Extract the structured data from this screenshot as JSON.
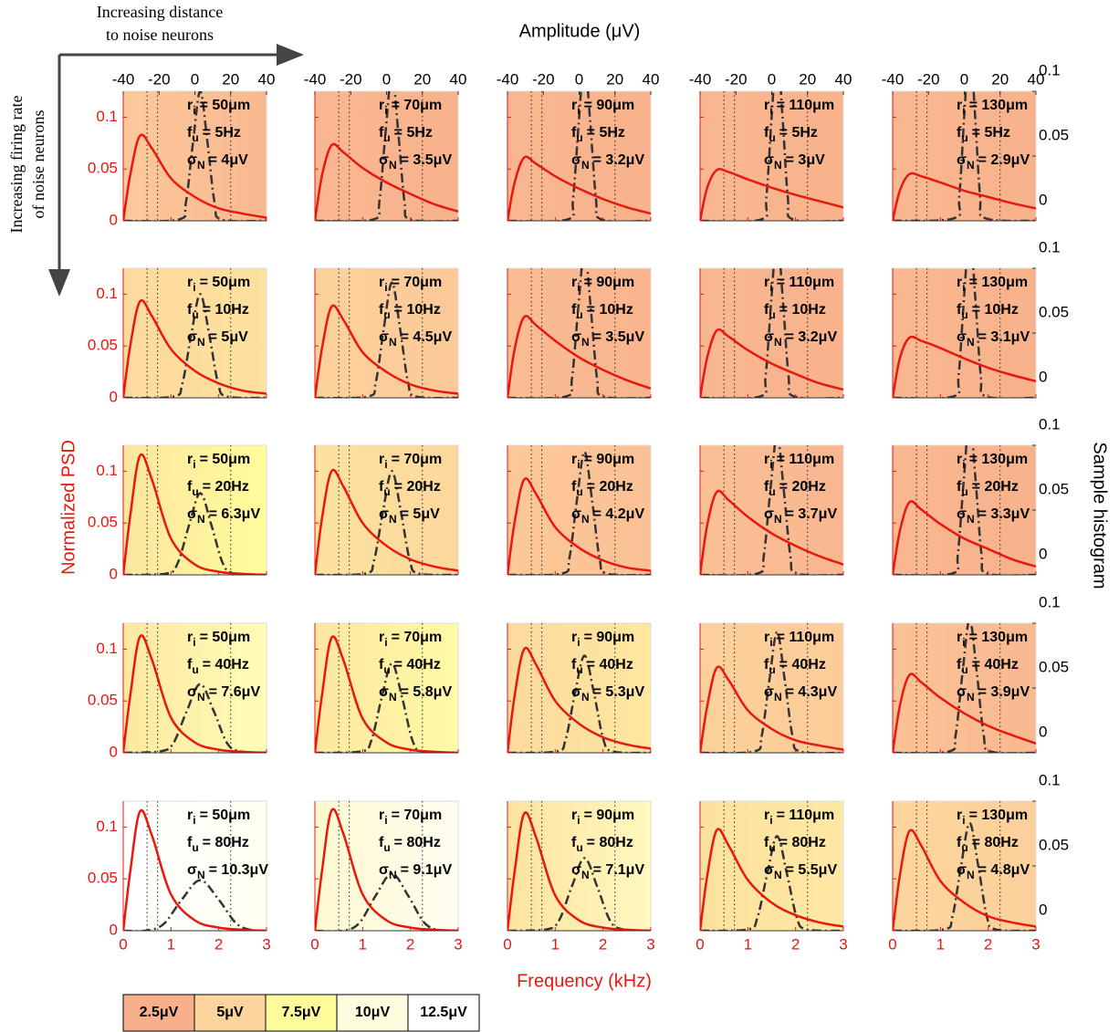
{
  "annotations": {
    "distance_arrow": [
      "Increasing distance",
      "to noise neurons"
    ],
    "rate_arrow": [
      "Increasing firing rate",
      "of noise neurons"
    ]
  },
  "chart_data": {
    "type": "small-multiples",
    "xlabel": "Frequency (kHz)",
    "ylabel": "Normalized PSD",
    "x2label": "Amplitude (μV)",
    "y2label": "Sample histogram",
    "xlim": [
      0,
      3
    ],
    "xticks": [
      0,
      1,
      2,
      3
    ],
    "ylim": [
      0,
      0.125
    ],
    "yticks": [
      0,
      0.05,
      0.1
    ],
    "x2lim": [
      -40,
      40
    ],
    "x2ticks": [
      -40,
      -20,
      0,
      20,
      40
    ],
    "y2lim": [
      0,
      0.1
    ],
    "y2ticks": [
      0,
      0.05,
      0.1
    ],
    "psd_color": "#e8170f",
    "hist_color": "#333333",
    "guides": [
      0.5,
      0.72,
      2.25
    ],
    "param_symbols": [
      {
        "symbol": "r",
        "sub": "i"
      },
      {
        "symbol": "f",
        "sub": "u"
      },
      {
        "symbol": "σ",
        "sub": "N"
      }
    ],
    "psd_x": [
      0,
      0.15,
      0.35,
      0.6,
      1,
      1.5,
      2,
      2.5,
      3
    ],
    "panels": [
      {
        "params": [
          "= 50μm",
          "= 5Hz",
          "= 4μV"
        ],
        "background": [
          "#fcc99a",
          "#f9b890"
        ],
        "psd": [
          0,
          0.045,
          0.082,
          0.07,
          0.041,
          0.023,
          0.012,
          0.007,
          0.003
        ],
        "hist_x": [
          -40,
          -9,
          -5,
          -1,
          3,
          7,
          11,
          15,
          40
        ],
        "hist": [
          0,
          0.001,
          0.014,
          0.061,
          0.1,
          0.061,
          0.014,
          0.001,
          0
        ]
      },
      {
        "params": [
          "= 70μm",
          "= 5Hz",
          "= 3.5μV"
        ],
        "background": [
          "#f9b790",
          "#f8b28c"
        ],
        "psd": [
          0,
          0.044,
          0.073,
          0.066,
          0.051,
          0.037,
          0.026,
          0.016,
          0.009
        ],
        "hist_x": [
          -40,
          -7.5,
          -4,
          -0.5,
          3,
          6.5,
          10,
          13.5,
          40
        ],
        "hist": [
          0,
          0.001,
          0.015,
          0.069,
          0.114,
          0.069,
          0.015,
          0.001,
          0
        ]
      },
      {
        "params": [
          "= 90μm",
          "= 5Hz",
          "= 3.2μV"
        ],
        "background": [
          "#f9b790",
          "#f8b28c"
        ],
        "psd": [
          0,
          0.037,
          0.061,
          0.055,
          0.043,
          0.031,
          0.021,
          0.013,
          0.007
        ],
        "hist_x": [
          -40,
          -6.6,
          -3.4,
          -0.2,
          3,
          6.2,
          9.4,
          12.6,
          40
        ],
        "hist": [
          0,
          0.001,
          0.017,
          0.076,
          0.125,
          0.076,
          0.017,
          0.001,
          0
        ]
      },
      {
        "params": [
          "= 110μm",
          "= 5Hz",
          "= 3μV"
        ],
        "background": [
          "#f9b790",
          "#f8b28c"
        ],
        "psd": [
          0,
          0.032,
          0.049,
          0.047,
          0.04,
          0.032,
          0.025,
          0.019,
          0.013
        ],
        "hist_x": [
          -40,
          -6,
          -3,
          0,
          3,
          6,
          9,
          12,
          40
        ],
        "hist": [
          0,
          0.001,
          0.018,
          0.081,
          0.133,
          0.081,
          0.018,
          0.001,
          0
        ]
      },
      {
        "params": [
          "= 130μm",
          "= 5Hz",
          "= 2.9μV"
        ],
        "background": [
          "#f9b790",
          "#f8b28c"
        ],
        "psd": [
          0,
          0.029,
          0.045,
          0.043,
          0.037,
          0.029,
          0.023,
          0.017,
          0.012
        ],
        "hist_x": [
          -40,
          -5.7,
          -2.8,
          0.1,
          3,
          5.9,
          8.8,
          11.7,
          40
        ],
        "hist": [
          0,
          0.002,
          0.019,
          0.084,
          0.138,
          0.084,
          0.019,
          0.002,
          0
        ]
      },
      {
        "params": [
          "= 50μm",
          "= 10Hz",
          "= 5μV"
        ],
        "background": [
          "#fdd99d",
          "#fde19f"
        ],
        "psd": [
          0,
          0.051,
          0.093,
          0.079,
          0.047,
          0.026,
          0.014,
          0.007,
          0.004
        ],
        "hist_x": [
          -40,
          -12,
          -7,
          -2,
          3,
          8,
          13,
          18,
          40
        ],
        "hist": [
          0,
          0.001,
          0.011,
          0.049,
          0.08,
          0.049,
          0.011,
          0.001,
          0
        ]
      },
      {
        "params": [
          "= 70μm",
          "= 10Hz",
          "= 4.5μV"
        ],
        "background": [
          "#fcd29c",
          "#fbc898"
        ],
        "psd": [
          0,
          0.048,
          0.088,
          0.075,
          0.044,
          0.025,
          0.013,
          0.007,
          0.004
        ],
        "hist_x": [
          -40,
          -10.5,
          -6,
          -1.5,
          3,
          7.5,
          12,
          16.5,
          40
        ],
        "hist": [
          0,
          0.001,
          0.012,
          0.054,
          0.089,
          0.054,
          0.012,
          0.001,
          0
        ]
      },
      {
        "params": [
          "= 90μm",
          "= 10Hz",
          "= 3.5μV"
        ],
        "background": [
          "#f9bd93",
          "#f9b48e"
        ],
        "psd": [
          0,
          0.047,
          0.078,
          0.07,
          0.055,
          0.039,
          0.027,
          0.017,
          0.009
        ],
        "hist_x": [
          -40,
          -7.5,
          -4,
          -0.5,
          3,
          6.5,
          10,
          13.5,
          40
        ],
        "hist": [
          0,
          0.001,
          0.015,
          0.069,
          0.114,
          0.069,
          0.015,
          0.001,
          0
        ]
      },
      {
        "params": [
          "= 110μm",
          "= 10Hz",
          "= 3.2μV"
        ],
        "background": [
          "#f9b790",
          "#f8b28c"
        ],
        "psd": [
          0,
          0.039,
          0.065,
          0.059,
          0.046,
          0.033,
          0.023,
          0.014,
          0.008
        ],
        "hist_x": [
          -40,
          -6.6,
          -3.4,
          -0.2,
          3,
          6.2,
          9.4,
          12.6,
          40
        ],
        "hist": [
          0,
          0.001,
          0.017,
          0.076,
          0.125,
          0.076,
          0.017,
          0.001,
          0
        ]
      },
      {
        "params": [
          "= 130μm",
          "= 10Hz",
          "= 3.1μV"
        ],
        "background": [
          "#f9b790",
          "#f8b28c"
        ],
        "psd": [
          0,
          0.038,
          0.058,
          0.055,
          0.048,
          0.038,
          0.029,
          0.022,
          0.016
        ],
        "hist_x": [
          -40,
          -6.3,
          -3.2,
          -0.1,
          3,
          6.1,
          9.2,
          12.3,
          40
        ],
        "hist": [
          0,
          0.001,
          0.017,
          0.078,
          0.129,
          0.078,
          0.017,
          0.001,
          0
        ]
      },
      {
        "params": [
          "= 50μm",
          "= 20Hz",
          "= 6.3μV"
        ],
        "background": [
          "#fde69f",
          "#fffc9c"
        ],
        "psd": [
          0,
          0.058,
          0.115,
          0.092,
          0.035,
          0.01,
          0.003,
          0.001,
          0
        ],
        "hist_x": [
          -40,
          -15.9,
          -9.6,
          -3.3,
          3,
          9.3,
          15.6,
          21.9,
          40
        ],
        "hist": [
          0,
          0.001,
          0.009,
          0.038,
          0.063,
          0.038,
          0.009,
          0.001,
          0
        ]
      },
      {
        "params": [
          "= 70μm",
          "= 20Hz",
          "= 5μV"
        ],
        "background": [
          "#fde39f",
          "#fcd79c"
        ],
        "psd": [
          0,
          0.055,
          0.1,
          0.085,
          0.05,
          0.028,
          0.015,
          0.008,
          0.004
        ],
        "hist_x": [
          -40,
          -12,
          -7,
          -2,
          3,
          8,
          13,
          18,
          40
        ],
        "hist": [
          0,
          0.001,
          0.011,
          0.049,
          0.08,
          0.049,
          0.011,
          0.001,
          0
        ]
      },
      {
        "params": [
          "= 90μm",
          "= 20Hz",
          "= 4.2μV"
        ],
        "background": [
          "#fcc897",
          "#fbc195"
        ],
        "psd": [
          0,
          0.051,
          0.092,
          0.078,
          0.046,
          0.026,
          0.014,
          0.007,
          0.004
        ],
        "hist_x": [
          -40,
          -9.6,
          -5.4,
          -1.2,
          3,
          7.2,
          11.4,
          15.6,
          40
        ],
        "hist": [
          0,
          0.001,
          0.013,
          0.058,
          0.095,
          0.058,
          0.013,
          0.001,
          0
        ]
      },
      {
        "params": [
          "= 110μm",
          "= 20Hz",
          "= 3.7μV"
        ],
        "background": [
          "#fac094",
          "#f9b690"
        ],
        "psd": [
          0,
          0.048,
          0.08,
          0.072,
          0.056,
          0.04,
          0.028,
          0.018,
          0.01
        ],
        "hist_x": [
          -40,
          -8.1,
          -4.4,
          -0.7,
          3,
          6.7,
          10.4,
          14.1,
          40
        ],
        "hist": [
          0,
          0.001,
          0.015,
          0.066,
          0.108,
          0.066,
          0.015,
          0.001,
          0
        ]
      },
      {
        "params": [
          "= 130μm",
          "= 20Hz",
          "= 3.3μV"
        ],
        "background": [
          "#f9b790",
          "#f8b28c"
        ],
        "psd": [
          0,
          0.042,
          0.07,
          0.063,
          0.049,
          0.035,
          0.025,
          0.015,
          0.008
        ],
        "hist_x": [
          -40,
          -6.9,
          -3.6,
          -0.3,
          3,
          6.3,
          9.6,
          12.9,
          40
        ],
        "hist": [
          0,
          0.001,
          0.016,
          0.073,
          0.121,
          0.073,
          0.016,
          0.001,
          0
        ]
      },
      {
        "params": [
          "= 50μm",
          "= 40Hz",
          "= 7.6μV"
        ],
        "background": [
          "#fde8a0",
          "#fffdb8"
        ],
        "psd": [
          0,
          0.056,
          0.112,
          0.09,
          0.034,
          0.01,
          0.003,
          0.001,
          0
        ],
        "hist_x": [
          -40,
          -19.8,
          -12.2,
          -4.6,
          3,
          10.6,
          18.2,
          25.8,
          40
        ],
        "hist": [
          0,
          0.001,
          0.007,
          0.032,
          0.053,
          0.032,
          0.007,
          0.001,
          0
        ]
      },
      {
        "params": [
          "= 70μm",
          "= 40Hz",
          "= 5.8μV"
        ],
        "background": [
          "#fde7a0",
          "#fefaa6"
        ],
        "psd": [
          0,
          0.056,
          0.111,
          0.089,
          0.033,
          0.01,
          0.003,
          0.001,
          0
        ],
        "hist_x": [
          -40,
          -14.4,
          -8.6,
          -2.8,
          3,
          8.8,
          14.6,
          20.4,
          40
        ],
        "hist": [
          0,
          0.001,
          0.009,
          0.042,
          0.069,
          0.042,
          0.009,
          0.001,
          0
        ]
      },
      {
        "params": [
          "= 90μm",
          "= 40Hz",
          "= 5.3μV"
        ],
        "background": [
          "#fdd99d",
          "#fde8a0"
        ],
        "psd": [
          0,
          0.055,
          0.1,
          0.085,
          0.05,
          0.028,
          0.015,
          0.008,
          0.004
        ],
        "hist_x": [
          -40,
          -12.9,
          -7.6,
          -2.3,
          3,
          8.3,
          13.6,
          18.9,
          40
        ],
        "hist": [
          0,
          0.001,
          0.01,
          0.046,
          0.075,
          0.046,
          0.01,
          0.001,
          0
        ]
      },
      {
        "params": [
          "= 110μm",
          "= 40Hz",
          "= 4.3μV"
        ],
        "background": [
          "#fcd09b",
          "#fccb99"
        ],
        "psd": [
          0,
          0.045,
          0.082,
          0.07,
          0.041,
          0.023,
          0.012,
          0.007,
          0.003
        ],
        "hist_x": [
          -40,
          -9.9,
          -5.6,
          -1.3,
          3,
          7.3,
          11.6,
          15.9,
          40
        ],
        "hist": [
          0,
          0.001,
          0.013,
          0.056,
          0.093,
          0.056,
          0.013,
          0.001,
          0
        ]
      },
      {
        "params": [
          "= 130μm",
          "= 40Hz",
          "= 3.9μV"
        ],
        "background": [
          "#fac295",
          "#f9b991"
        ],
        "psd": [
          0,
          0.045,
          0.075,
          0.068,
          0.053,
          0.038,
          0.026,
          0.017,
          0.009
        ],
        "hist_x": [
          -40,
          -8.7,
          -4.8,
          -0.9,
          3,
          6.9,
          10.8,
          14.7,
          40
        ],
        "hist": [
          0,
          0.001,
          0.014,
          0.063,
          0.103,
          0.063,
          0.014,
          0.001,
          0
        ]
      },
      {
        "params": [
          "= 50μm",
          "= 80Hz",
          "= 10.3μV"
        ],
        "background": [
          "#ffffff",
          "#fffef0"
        ],
        "psd": [
          0,
          0.058,
          0.115,
          0.092,
          0.035,
          0.01,
          0.003,
          0.001,
          0
        ],
        "hist_x": [
          -40,
          -27.9,
          -17.6,
          -7.3,
          3,
          13.3,
          23.6,
          33.9,
          40
        ],
        "hist": [
          0,
          0,
          0.005,
          0.024,
          0.039,
          0.024,
          0.005,
          0,
          0
        ]
      },
      {
        "params": [
          "= 70μm",
          "= 80Hz",
          "= 9.1μV"
        ],
        "background": [
          "#fff9d0",
          "#fffdf0"
        ],
        "psd": [
          0,
          0.058,
          0.116,
          0.093,
          0.035,
          0.01,
          0.003,
          0.001,
          0
        ],
        "hist_x": [
          -40,
          -24.3,
          -15.2,
          -6.1,
          3,
          12.1,
          21.2,
          30.3,
          40
        ],
        "hist": [
          0,
          0,
          0.006,
          0.027,
          0.044,
          0.027,
          0.006,
          0,
          0
        ]
      },
      {
        "params": [
          "= 90μm",
          "= 80Hz",
          "= 7.1μV"
        ],
        "background": [
          "#fde39f",
          "#fff8c0"
        ],
        "psd": [
          0,
          0.057,
          0.113,
          0.09,
          0.034,
          0.01,
          0.003,
          0.001,
          0
        ],
        "hist_x": [
          -40,
          -18.3,
          -11.2,
          -4.1,
          3,
          10.1,
          17.2,
          24.3,
          40
        ],
        "hist": [
          0,
          0.001,
          0.008,
          0.034,
          0.056,
          0.034,
          0.008,
          0.001,
          0
        ]
      },
      {
        "params": [
          "= 110μm",
          "= 80Hz",
          "= 5.5μV"
        ],
        "background": [
          "#fde19f",
          "#fde8a3"
        ],
        "psd": [
          0,
          0.053,
          0.097,
          0.082,
          0.049,
          0.027,
          0.015,
          0.008,
          0.004
        ],
        "hist_x": [
          -40,
          -13.5,
          -8,
          -2.5,
          3,
          8.5,
          14,
          19.5,
          40
        ],
        "hist": [
          0,
          0.001,
          0.01,
          0.044,
          0.073,
          0.044,
          0.01,
          0.001,
          0
        ]
      },
      {
        "params": [
          "= 130μm",
          "= 80Hz",
          "= 4.8μV"
        ],
        "background": [
          "#fcd59c",
          "#fcd09b"
        ],
        "psd": [
          0,
          0.053,
          0.096,
          0.082,
          0.048,
          0.027,
          0.014,
          0.008,
          0.004
        ],
        "hist_x": [
          -40,
          -11.4,
          -6.6,
          -1.8,
          3,
          7.8,
          12.6,
          17.4,
          40
        ],
        "hist": [
          0,
          0.001,
          0.011,
          0.05,
          0.083,
          0.05,
          0.011,
          0.001,
          0
        ]
      }
    ]
  },
  "legend": {
    "items": [
      {
        "label": "2.5μV",
        "color": "#f8b08b"
      },
      {
        "label": "5μV",
        "color": "#fcd49c"
      },
      {
        "label": "7.5μV",
        "color": "#fefc9a"
      },
      {
        "label": "10μV",
        "color": "#fffde0"
      },
      {
        "label": "12.5μV",
        "color": "#ffffff"
      }
    ]
  }
}
